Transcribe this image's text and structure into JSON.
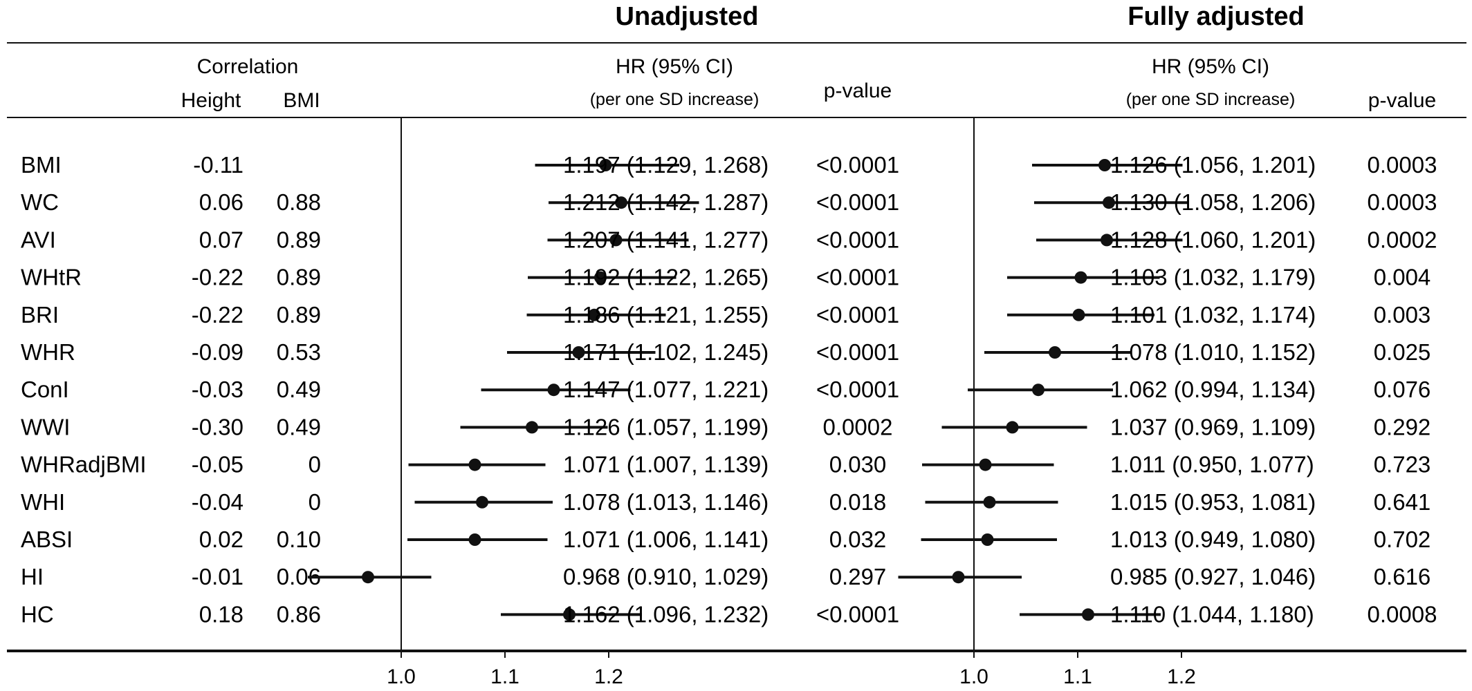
{
  "chart_data": {
    "type": "forest",
    "headers": {
      "unadjusted_title": "Unadjusted",
      "adjusted_title": "Fully adjusted",
      "correlation": "Correlation",
      "height": "Height",
      "bmi": "BMI",
      "hr": "HR (95% CI)",
      "per_sd": "(per one SD increase)",
      "pvalue": "p-value"
    },
    "x_ticks": [
      "1.0",
      "1.1",
      "1.2"
    ],
    "x_tick_values": [
      1.0,
      1.1,
      1.2
    ],
    "reference_line": 1.0,
    "rows": [
      {
        "label": "BMI",
        "corr_height": "-0.11",
        "corr_bmi": "",
        "unadj": {
          "hr": 1.197,
          "lo": 1.129,
          "hi": 1.268,
          "text": "1.197 (1.129, 1.268)",
          "p": "<0.0001"
        },
        "adj": {
          "hr": 1.126,
          "lo": 1.056,
          "hi": 1.201,
          "text": "1.126 (1.056, 1.201)",
          "p": "0.0003"
        }
      },
      {
        "label": "WC",
        "corr_height": "0.06",
        "corr_bmi": "0.88",
        "unadj": {
          "hr": 1.212,
          "lo": 1.142,
          "hi": 1.287,
          "text": "1.212 (1.142, 1.287)",
          "p": "<0.0001"
        },
        "adj": {
          "hr": 1.13,
          "lo": 1.058,
          "hi": 1.206,
          "text": "1.130 (1.058, 1.206)",
          "p": "0.0003"
        }
      },
      {
        "label": "AVI",
        "corr_height": "0.07",
        "corr_bmi": "0.89",
        "unadj": {
          "hr": 1.207,
          "lo": 1.141,
          "hi": 1.277,
          "text": "1.207 (1.141, 1.277)",
          "p": "<0.0001"
        },
        "adj": {
          "hr": 1.128,
          "lo": 1.06,
          "hi": 1.201,
          "text": "1.128 (1.060, 1.201)",
          "p": "0.0002"
        }
      },
      {
        "label": "WHtR",
        "corr_height": "-0.22",
        "corr_bmi": "0.89",
        "unadj": {
          "hr": 1.192,
          "lo": 1.122,
          "hi": 1.265,
          "text": "1.192 (1.122, 1.265)",
          "p": "<0.0001"
        },
        "adj": {
          "hr": 1.103,
          "lo": 1.032,
          "hi": 1.179,
          "text": "1.103 (1.032, 1.179)",
          "p": "0.004"
        }
      },
      {
        "label": "BRI",
        "corr_height": "-0.22",
        "corr_bmi": "0.89",
        "unadj": {
          "hr": 1.186,
          "lo": 1.121,
          "hi": 1.255,
          "text": "1.186 (1.121, 1.255)",
          "p": "<0.0001"
        },
        "adj": {
          "hr": 1.101,
          "lo": 1.032,
          "hi": 1.174,
          "text": "1.101 (1.032, 1.174)",
          "p": "0.003"
        }
      },
      {
        "label": "WHR",
        "corr_height": "-0.09",
        "corr_bmi": "0.53",
        "unadj": {
          "hr": 1.171,
          "lo": 1.102,
          "hi": 1.245,
          "text": "1.171 (1.102, 1.245)",
          "p": "<0.0001"
        },
        "adj": {
          "hr": 1.078,
          "lo": 1.01,
          "hi": 1.152,
          "text": "1.078 (1.010, 1.152)",
          "p": "0.025"
        }
      },
      {
        "label": "ConI",
        "corr_height": "-0.03",
        "corr_bmi": "0.49",
        "unadj": {
          "hr": 1.147,
          "lo": 1.077,
          "hi": 1.221,
          "text": "1.147 (1.077, 1.221)",
          "p": "<0.0001"
        },
        "adj": {
          "hr": 1.062,
          "lo": 0.994,
          "hi": 1.134,
          "text": "1.062 (0.994, 1.134)",
          "p": "0.076"
        }
      },
      {
        "label": "WWI",
        "corr_height": "-0.30",
        "corr_bmi": "0.49",
        "unadj": {
          "hr": 1.126,
          "lo": 1.057,
          "hi": 1.199,
          "text": "1.126 (1.057, 1.199)",
          "p": "0.0002"
        },
        "adj": {
          "hr": 1.037,
          "lo": 0.969,
          "hi": 1.109,
          "text": "1.037 (0.969, 1.109)",
          "p": "0.292"
        }
      },
      {
        "label": "WHRadjBMI",
        "corr_height": "-0.05",
        "corr_bmi": "0",
        "unadj": {
          "hr": 1.071,
          "lo": 1.007,
          "hi": 1.139,
          "text": "1.071 (1.007, 1.139)",
          "p": "0.030"
        },
        "adj": {
          "hr": 1.011,
          "lo": 0.95,
          "hi": 1.077,
          "text": "1.011 (0.950, 1.077)",
          "p": "0.723"
        }
      },
      {
        "label": "WHI",
        "corr_height": "-0.04",
        "corr_bmi": "0",
        "unadj": {
          "hr": 1.078,
          "lo": 1.013,
          "hi": 1.146,
          "text": "1.078 (1.013, 1.146)",
          "p": "0.018"
        },
        "adj": {
          "hr": 1.015,
          "lo": 0.953,
          "hi": 1.081,
          "text": "1.015 (0.953, 1.081)",
          "p": "0.641"
        }
      },
      {
        "label": "ABSI",
        "corr_height": "0.02",
        "corr_bmi": "0.10",
        "unadj": {
          "hr": 1.071,
          "lo": 1.006,
          "hi": 1.141,
          "text": "1.071 (1.006, 1.141)",
          "p": "0.032"
        },
        "adj": {
          "hr": 1.013,
          "lo": 0.949,
          "hi": 1.08,
          "text": "1.013 (0.949, 1.080)",
          "p": "0.702"
        }
      },
      {
        "label": "HI",
        "corr_height": "-0.01",
        "corr_bmi": "0.06",
        "unadj": {
          "hr": 0.968,
          "lo": 0.91,
          "hi": 1.029,
          "text": "0.968 (0.910, 1.029)",
          "p": "0.297"
        },
        "adj": {
          "hr": 0.985,
          "lo": 0.927,
          "hi": 1.046,
          "text": "0.985 (0.927, 1.046)",
          "p": "0.616"
        }
      },
      {
        "label": "HC",
        "corr_height": "0.18",
        "corr_bmi": "0.86",
        "unadj": {
          "hr": 1.162,
          "lo": 1.096,
          "hi": 1.232,
          "text": "1.162 (1.096, 1.232)",
          "p": "<0.0001"
        },
        "adj": {
          "hr": 1.11,
          "lo": 1.044,
          "hi": 1.18,
          "text": "1.110 (1.044, 1.180)",
          "p": "0.0008"
        }
      }
    ]
  }
}
